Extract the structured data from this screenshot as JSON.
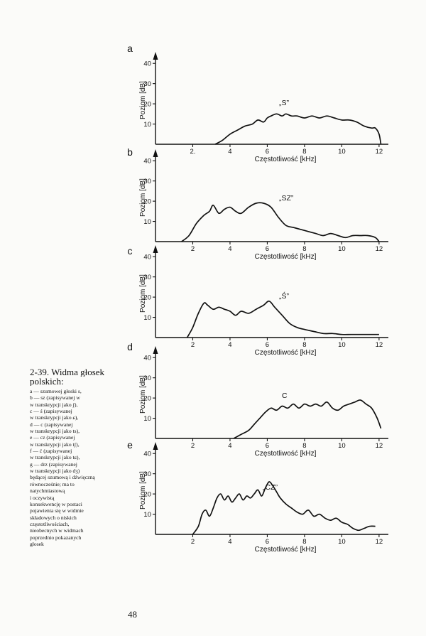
{
  "caption": {
    "title_lines": [
      "2-39. Widma głosek",
      "polskich:"
    ],
    "body_lines": [
      "a — szumowej głoski s,",
      "b — sz (zapisywanej w",
      "w transkrypcji jako ʃ),",
      "c — ś (zapisywanej",
      "w transkrypcji jako ɕ),",
      "d — c (zapisywanej",
      "w transkrypcji jako ts),",
      "e — cz (zapisywanej",
      "w transkrypcji jako tʃ),",
      "f — ć (zapisywanej",
      "w transkrypcji jako tɕ),",
      "g — drz (zapisywanej",
      "w transkrypcji jako dʒ)",
      "będącej szumową i dźwięczną",
      "równocześnie; ma to",
      "natychmiastową",
      "i oczywistą",
      "konsekwencję w postaci",
      "pojawienia się w widmie",
      "składowych o niskich",
      "częstotliwościach,",
      "nieobecnych w widmach",
      "poprzednio pokazanych",
      "głosek"
    ]
  },
  "page_number": "48",
  "colors": {
    "ink": "#111111",
    "paper": "#fbfbf9"
  },
  "chart_data": [
    {
      "type": "line",
      "panel": "a",
      "series_label": "„S”",
      "xlabel": "Częstotliwość [kHz]",
      "ylabel": "Poziom [dB]",
      "xlim": [
        0,
        12.5
      ],
      "ylim": [
        0,
        45
      ],
      "xticks": [
        2,
        4,
        6,
        8,
        10,
        12
      ],
      "xtick_labels": [
        "2.",
        "4",
        "6",
        "8",
        "10",
        "12"
      ],
      "yticks": [
        10,
        20,
        30,
        40
      ],
      "x": [
        3.2,
        3.6,
        4.0,
        4.4,
        4.8,
        5.2,
        5.5,
        5.8,
        6.0,
        6.2,
        6.5,
        6.8,
        7.0,
        7.3,
        7.6,
        8.0,
        8.4,
        8.8,
        9.2,
        9.6,
        10.0,
        10.4,
        10.8,
        11.2,
        11.6,
        11.8,
        12.0,
        12.1
      ],
      "y": [
        0,
        2,
        5,
        7,
        9,
        10,
        12,
        11,
        13,
        14,
        15,
        14,
        15,
        14,
        14,
        13,
        14,
        13,
        14,
        13,
        12,
        12,
        11,
        9,
        8,
        8,
        5,
        0
      ]
    },
    {
      "type": "line",
      "panel": "b",
      "series_label": "„SZ”",
      "xlabel": "Częstotliwość [kHz]",
      "ylabel": "Poziom [dB]",
      "xlim": [
        0,
        12.5
      ],
      "ylim": [
        0,
        45
      ],
      "xticks": [
        2,
        4,
        6,
        8,
        10,
        12
      ],
      "xtick_labels": [
        "2",
        "4",
        "6",
        "8",
        "10",
        "12"
      ],
      "yticks": [
        10,
        20,
        30,
        40
      ],
      "x": [
        1.4,
        1.8,
        2.2,
        2.6,
        2.9,
        3.1,
        3.4,
        3.7,
        4.0,
        4.3,
        4.6,
        5.0,
        5.4,
        5.8,
        6.2,
        6.6,
        7.0,
        7.4,
        7.8,
        8.2,
        8.6,
        9.0,
        9.4,
        9.8,
        10.2,
        10.6,
        11.0,
        11.4,
        11.8,
        12.0
      ],
      "y": [
        0,
        3,
        9,
        13,
        15,
        18,
        14,
        16,
        17,
        15,
        14,
        17,
        19,
        19,
        17,
        12,
        8,
        7,
        6,
        5,
        4,
        3,
        4,
        3,
        2,
        3,
        3,
        3,
        2,
        0
      ]
    },
    {
      "type": "line",
      "panel": "c",
      "series_label": "„Ś”",
      "xlabel": "Częstotliwość [kHz]",
      "ylabel": "Poziom [dB]",
      "xlim": [
        0,
        12.5
      ],
      "ylim": [
        0,
        45
      ],
      "xticks": [
        2,
        4,
        6,
        8,
        10,
        12
      ],
      "xtick_labels": [
        "2",
        "4",
        "6",
        "8",
        "10",
        "12"
      ],
      "yticks": [
        10,
        20,
        30,
        40
      ],
      "x": [
        1.7,
        2.0,
        2.3,
        2.6,
        2.8,
        3.1,
        3.4,
        3.7,
        4.0,
        4.3,
        4.6,
        5.0,
        5.4,
        5.8,
        6.1,
        6.4,
        6.8,
        7.2,
        7.6,
        8.0,
        8.5,
        9.0,
        9.5,
        10.0,
        10.5,
        11.0,
        11.5,
        12.0
      ],
      "y": [
        0,
        5,
        12,
        17,
        16,
        14,
        15,
        14,
        13,
        11,
        13,
        12,
        14,
        16,
        18,
        15,
        11,
        7,
        5,
        4,
        3,
        2,
        2,
        1.5,
        1.5,
        1.5,
        1.5,
        1.5
      ]
    },
    {
      "type": "line",
      "panel": "d",
      "series_label": "C",
      "xlabel": "Częstotliwość [kHz]",
      "ylabel": "Poziom [dB]",
      "xlim": [
        0,
        12.5
      ],
      "ylim": [
        0,
        45
      ],
      "xticks": [
        2,
        4,
        6,
        8,
        10,
        12
      ],
      "xtick_labels": [
        "2",
        "4",
        "6",
        "8",
        "10",
        "12"
      ],
      "yticks": [
        10,
        20,
        30,
        40
      ],
      "x": [
        4.2,
        4.6,
        5.0,
        5.3,
        5.6,
        5.9,
        6.2,
        6.5,
        6.8,
        7.1,
        7.4,
        7.7,
        8.0,
        8.3,
        8.6,
        8.9,
        9.2,
        9.5,
        9.8,
        10.1,
        10.4,
        10.7,
        11.0,
        11.3,
        11.6,
        11.9,
        12.1
      ],
      "y": [
        0,
        2,
        4,
        7,
        10,
        13,
        15,
        14,
        16,
        15,
        17,
        15,
        17,
        16,
        17,
        16,
        18,
        15,
        14,
        16,
        17,
        18,
        19,
        17,
        15,
        10,
        5
      ]
    },
    {
      "type": "line",
      "panel": "e",
      "series_label": "„CZ”",
      "xlabel": "Częstotliwość [kHz]",
      "ylabel": "Poziom [dB]",
      "xlim": [
        0,
        12.5
      ],
      "ylim": [
        0,
        45
      ],
      "xticks": [
        2,
        4,
        6,
        8,
        10,
        12
      ],
      "xtick_labels": [
        "2",
        "4",
        "6",
        "8",
        "10",
        "12"
      ],
      "yticks": [
        10,
        20,
        30,
        40
      ],
      "x": [
        2.0,
        2.3,
        2.5,
        2.7,
        2.9,
        3.1,
        3.3,
        3.5,
        3.7,
        3.9,
        4.1,
        4.3,
        4.5,
        4.7,
        4.9,
        5.1,
        5.3,
        5.5,
        5.7,
        5.9,
        6.1,
        6.3,
        6.5,
        6.7,
        7.0,
        7.3,
        7.6,
        7.9,
        8.2,
        8.5,
        8.8,
        9.1,
        9.4,
        9.7,
        10.0,
        10.3,
        10.6,
        10.9,
        11.2,
        11.5,
        11.8
      ],
      "y": [
        0,
        4,
        10,
        12,
        9,
        13,
        18,
        20,
        17,
        19,
        16,
        18,
        20,
        17,
        19,
        18,
        20,
        22,
        19,
        23,
        26,
        24,
        21,
        18,
        15,
        13,
        11,
        10,
        12,
        9,
        10,
        8,
        7,
        8,
        6,
        5,
        3,
        2,
        3,
        4,
        4
      ]
    }
  ]
}
